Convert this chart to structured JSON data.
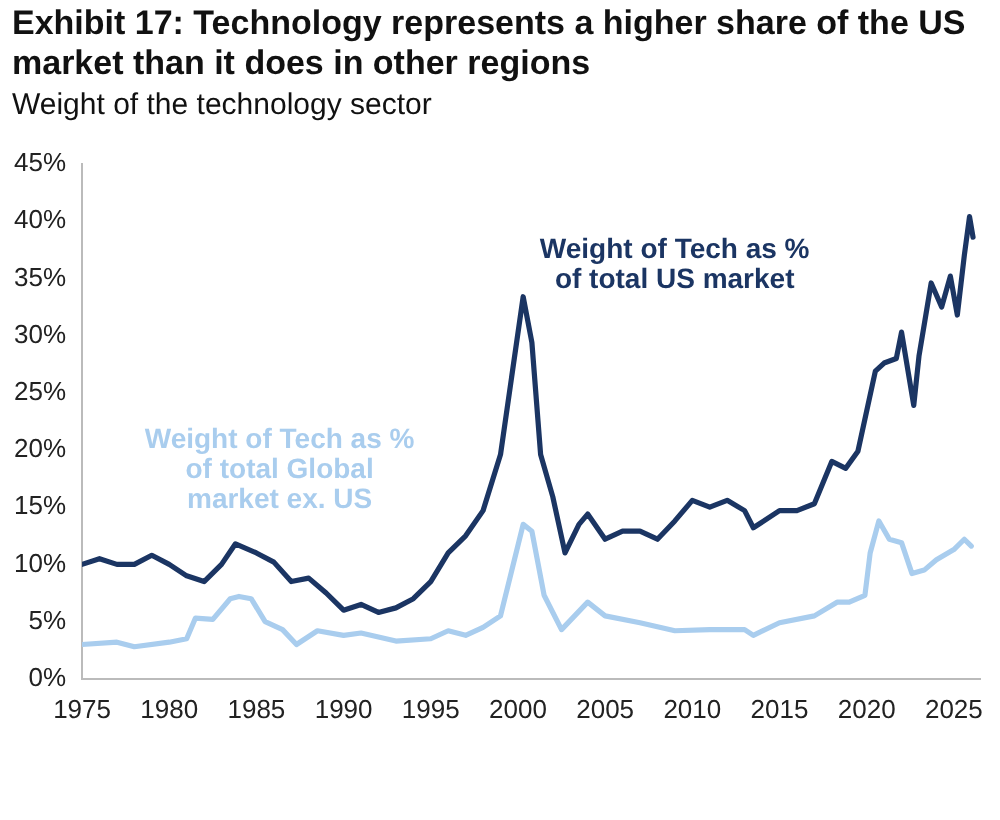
{
  "chart_data": {
    "type": "line",
    "title": "Exhibit 17: Technology represents a higher share of the US market than it does in other regions",
    "subtitle": "Weight of the technology sector",
    "xlim": [
      1975,
      2026.5
    ],
    "xticks": [
      1975,
      1980,
      1985,
      1990,
      1995,
      2000,
      2005,
      2010,
      2015,
      2020,
      2025
    ],
    "ylim": [
      0,
      45
    ],
    "yticks": [
      {
        "value": 0,
        "label": "0%"
      },
      {
        "value": 5,
        "label": "5%"
      },
      {
        "value": 10,
        "label": "10%"
      },
      {
        "value": 15,
        "label": "15%"
      },
      {
        "value": 20,
        "label": "20%"
      },
      {
        "value": 25,
        "label": "25%"
      },
      {
        "value": 30,
        "label": "30%"
      },
      {
        "value": 35,
        "label": "35%"
      },
      {
        "value": 40,
        "label": "40%"
      },
      {
        "value": 45,
        "label": "45%"
      }
    ],
    "grid": false,
    "legend": false,
    "marker": "none",
    "line_style": "solid",
    "series": [
      {
        "name": "Weight of Tech as % of total US market",
        "color": "#1b3563",
        "x": [
          1975,
          1976,
          1977,
          1978,
          1979,
          1980,
          1981,
          1982,
          1983,
          1983.8,
          1985,
          1986,
          1987,
          1988,
          1989,
          1990,
          1991,
          1992,
          1993,
          1994,
          1995,
          1996,
          1997,
          1998,
          1999,
          2000.3,
          2000.8,
          2001.3,
          2002,
          2002.7,
          2003.5,
          2004,
          2005,
          2006,
          2007,
          2008,
          2009,
          2010,
          2011,
          2012,
          2013,
          2013.5,
          2015,
          2016,
          2017,
          2018,
          2018.8,
          2019.5,
          2020.5,
          2021,
          2021.7,
          2022,
          2022.7,
          2023,
          2023.7,
          2024.3,
          2024.8,
          2025.2,
          2025.6,
          2025.9,
          2026.1
        ],
        "values": [
          10,
          10.5,
          10,
          10,
          10.8,
          10,
          9,
          8.5,
          10,
          11.8,
          11,
          10.2,
          8.5,
          8.8,
          7.5,
          6,
          6.5,
          5.8,
          6.2,
          7,
          8.5,
          11,
          12.5,
          14.7,
          19.6,
          33.4,
          29.4,
          19.6,
          15.9,
          11,
          13.5,
          14.4,
          12.2,
          12.9,
          12.9,
          12.2,
          13.8,
          15.6,
          15,
          15.6,
          14.7,
          13.2,
          14.7,
          14.7,
          15.3,
          19,
          18.4,
          19.9,
          26.9,
          27.6,
          28,
          30.3,
          23.9,
          28.2,
          34.6,
          32.5,
          35.2,
          31.8,
          37,
          40.4,
          38.6
        ]
      },
      {
        "name": "Weight of Tech as % of total Global market ex. US",
        "color": "#a9cdee",
        "x": [
          1975,
          1977,
          1978,
          1980,
          1981,
          1981.5,
          1982.5,
          1983.5,
          1984,
          1984.7,
          1985.5,
          1986.5,
          1987.3,
          1988.5,
          1990,
          1991,
          1993,
          1995,
          1996,
          1997,
          1998,
          1999,
          2000.3,
          2000.8,
          2001.5,
          2002.5,
          2004,
          2005,
          2007,
          2009,
          2011,
          2013,
          2013.5,
          2015,
          2017,
          2018.3,
          2019,
          2019.9,
          2020.2,
          2020.7,
          2021.3,
          2022,
          2022.6,
          2023.3,
          2024,
          2025,
          2025.6,
          2026
        ],
        "values": [
          3,
          3.2,
          2.8,
          3.2,
          3.5,
          5.3,
          5.2,
          7,
          7.2,
          7,
          5,
          4.3,
          3,
          4.2,
          3.8,
          4,
          3.3,
          3.5,
          4.2,
          3.8,
          4.5,
          5.5,
          13.5,
          12.9,
          7.3,
          4.3,
          6.7,
          5.5,
          4.9,
          4.2,
          4.3,
          4.3,
          3.8,
          4.9,
          5.5,
          6.7,
          6.7,
          7.3,
          11,
          13.8,
          12.2,
          11.9,
          9.2,
          9.5,
          10.4,
          11.3,
          12.2,
          11.6
        ]
      }
    ]
  }
}
